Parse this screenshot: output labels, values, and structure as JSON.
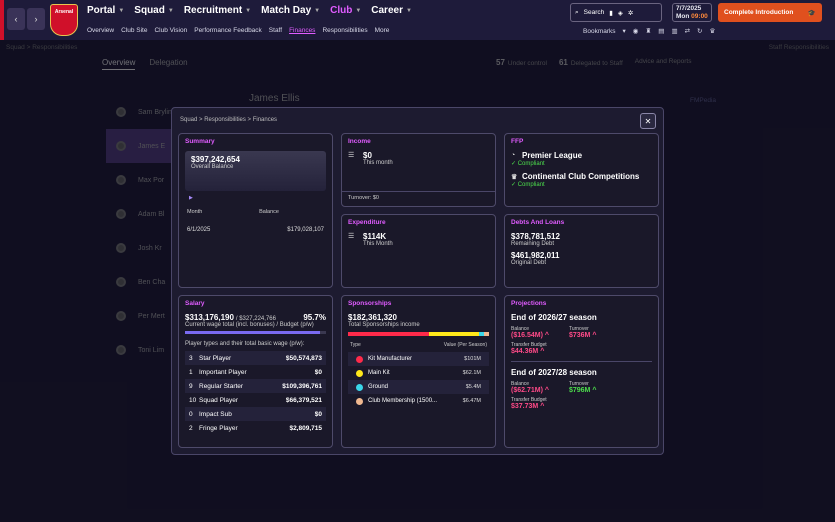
{
  "header": {
    "club": "Arsenal",
    "menu": [
      "Portal",
      "Squad",
      "Recruitment",
      "Match Day",
      "Club",
      "Career"
    ],
    "active_menu": "Club",
    "submenu": [
      "Overview",
      "Club Site",
      "Club Vision",
      "Performance Feedback",
      "Staff",
      "Finances",
      "Responsibilities",
      "More"
    ],
    "search_label": "Search",
    "date": "7/7/2025",
    "day": "Mon",
    "time": "09:00",
    "cta_label": "Complete Introduction",
    "bookmarks_label": "Bookmarks"
  },
  "background": {
    "crumb": "Squad > Responsibilities",
    "staff_resp": "Staff Responsibilities",
    "tabs": [
      "Overview",
      "Delegation"
    ],
    "stats": [
      {
        "n": "57",
        "label": "Under control"
      },
      {
        "n": "61",
        "label": "Delegated to Staff"
      }
    ],
    "advice": "Advice and Reports",
    "name": "James Ellis",
    "fmpedia": "FMPedia",
    "staff": [
      "Sam Brylinski",
      "James E",
      "Max Por",
      "Adam Bl",
      "Josh Kr",
      "Ben Cha",
      "Per Mert",
      "Toni Lim"
    ]
  },
  "modal": {
    "crumb": "Squad > Responsibilities > Finances",
    "summary": {
      "title": "Summary",
      "balance": "$397,242,654",
      "balance_label": "Overall Balance",
      "col_month": "Month",
      "col_balance": "Balance",
      "row_month": "6/1/2025",
      "row_balance": "$179,028,107"
    },
    "income": {
      "title": "Income",
      "value": "$0",
      "label": "This month",
      "turnover": "Turnover: $0"
    },
    "expenditure": {
      "title": "Expenditure",
      "value": "$114K",
      "label": "This Month"
    },
    "ffp": {
      "title": "FFP",
      "items": [
        {
          "name": "Premier League",
          "status": "Compliant"
        },
        {
          "name": "Continental Club Competitions",
          "status": "Compliant"
        }
      ]
    },
    "debts": {
      "title": "Debts And Loans",
      "remaining": "$378,781,512",
      "remaining_label": "Remaining Debt",
      "original": "$461,982,011",
      "original_label": "Original Debt"
    },
    "salary": {
      "title": "Salary",
      "current": "$313,176,190",
      "budget": "/ $327,224,766",
      "pct": "95.7%",
      "pct_value": 95.7,
      "label": "Current wage total (incl. bonuses) / Budget (p/w)",
      "types_label": "Player types and their total basic wage (p/w):",
      "rows": [
        {
          "n": "3",
          "t": "Star Player",
          "v": "$50,574,873"
        },
        {
          "n": "1",
          "t": "Important Player",
          "v": "$0"
        },
        {
          "n": "9",
          "t": "Regular Starter",
          "v": "$109,396,761"
        },
        {
          "n": "10",
          "t": "Squad Player",
          "v": "$66,379,521"
        },
        {
          "n": "0",
          "t": "Impact Sub",
          "v": "$0"
        },
        {
          "n": "2",
          "t": "Fringe Player",
          "v": "$2,809,715"
        }
      ]
    },
    "sponsorships": {
      "title": "Sponsorships",
      "total": "$182,361,320",
      "label": "Total Sponsorships income",
      "col_type": "Type",
      "col_value": "Value (Per Season)",
      "rows": [
        {
          "t": "Kit Manufacturer",
          "v": "$101M",
          "color": "#ff2a4a",
          "share": 101
        },
        {
          "t": "Main Kit",
          "v": "$62.1M",
          "color": "#ffe81a",
          "share": 62.1
        },
        {
          "t": "Ground",
          "v": "$5.4M",
          "color": "#3ad6e8",
          "share": 5.4
        },
        {
          "t": "Club Membership (1500...",
          "v": "$6.47M",
          "color": "#f0b890",
          "share": 6.47
        }
      ]
    },
    "projections": {
      "title": "Projections",
      "seasons": [
        {
          "name": "End of 2026/27 season",
          "balance_label": "Balance",
          "balance": "($16.54M)",
          "turnover_label": "Turnover",
          "turnover": "$736M",
          "transfer_label": "Transfer Budget",
          "transfer": "$44.36M"
        },
        {
          "name": "End of 2027/28 season",
          "balance_label": "Balance",
          "balance": "($62.71M)",
          "turnover_label": "Turnover",
          "turnover": "$796M",
          "transfer_label": "Transfer Budget",
          "transfer": "$37.73M"
        }
      ]
    }
  }
}
